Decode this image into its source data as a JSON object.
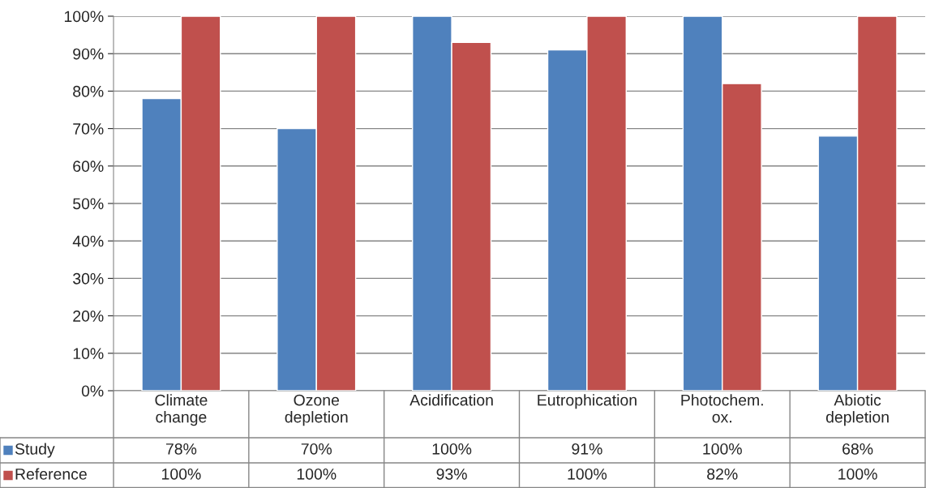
{
  "chart_data": {
    "type": "bar",
    "categories": [
      "Climate\nchange",
      "Ozone\ndepletion",
      "Acidification",
      "Eutrophication",
      "Photochem.\nox.",
      "Abiotic\ndepletion"
    ],
    "series": [
      {
        "name": "Study",
        "color": "#4f81bd",
        "values": [
          78,
          70,
          100,
          91,
          100,
          68
        ],
        "value_labels": [
          "78%",
          "70%",
          "100%",
          "91%",
          "100%",
          "68%"
        ]
      },
      {
        "name": "Reference",
        "color": "#c0504d",
        "values": [
          100,
          100,
          93,
          100,
          82,
          100
        ],
        "value_labels": [
          "100%",
          "100%",
          "93%",
          "100%",
          "82%",
          "100%"
        ]
      }
    ],
    "ylim": [
      0,
      100
    ],
    "yticks": [
      {
        "value": 0,
        "label": "0%"
      },
      {
        "value": 10,
        "label": "10%"
      },
      {
        "value": 20,
        "label": "20%"
      },
      {
        "value": 30,
        "label": "30%"
      },
      {
        "value": 40,
        "label": "40%"
      },
      {
        "value": 50,
        "label": "50%"
      },
      {
        "value": 60,
        "label": "60%"
      },
      {
        "value": 70,
        "label": "70%"
      },
      {
        "value": 80,
        "label": "80%"
      },
      {
        "value": 90,
        "label": "90%"
      },
      {
        "value": 100,
        "label": "100%"
      }
    ],
    "grid": "y",
    "legend": "bottom"
  }
}
